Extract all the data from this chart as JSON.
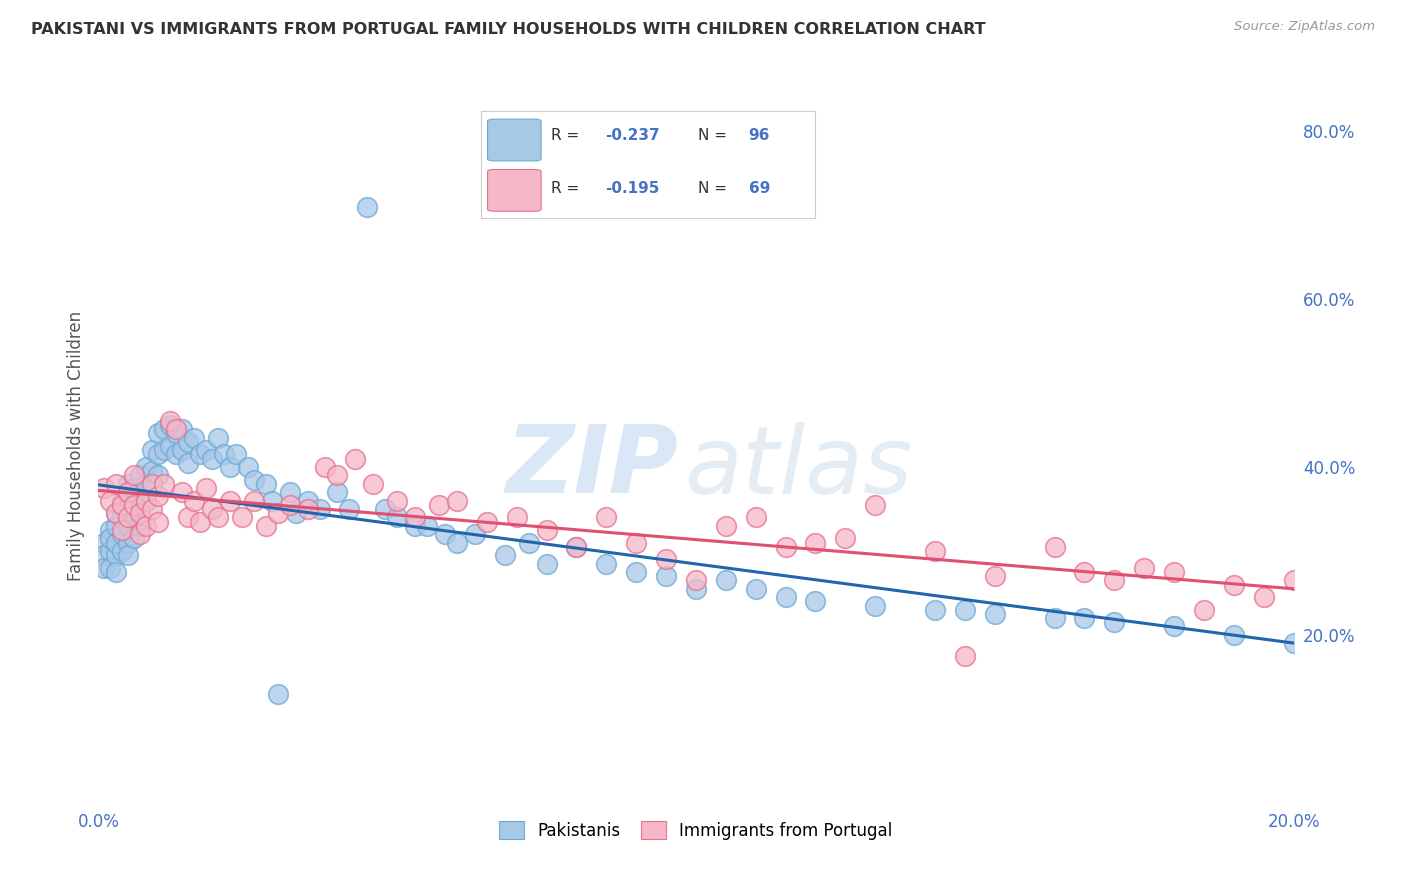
{
  "title": "PAKISTANI VS IMMIGRANTS FROM PORTUGAL FAMILY HOUSEHOLDS WITH CHILDREN CORRELATION CHART",
  "source": "Source: ZipAtlas.com",
  "ylabel": "Family Households with Children",
  "xlim": [
    0.0,
    0.2
  ],
  "ylim": [
    0.0,
    0.85
  ],
  "xticks": [
    0.0,
    0.05,
    0.1,
    0.15,
    0.2
  ],
  "xtick_labels": [
    "0.0%",
    "",
    "",
    "",
    "20.0%"
  ],
  "ytick_labels_right": [
    "20.0%",
    "40.0%",
    "60.0%",
    "80.0%"
  ],
  "yticks_right": [
    0.2,
    0.4,
    0.6,
    0.8
  ],
  "blue_color": "#a8c8e8",
  "blue_edge_color": "#6aaad4",
  "pink_color": "#f4b8c8",
  "pink_edge_color": "#e87090",
  "blue_line_color": "#2166ac",
  "pink_line_color": "#e05070",
  "tick_label_color": "#4472c4",
  "background_color": "#ffffff",
  "grid_color": "#cccccc",
  "blue_scatter_x": [
    0.001,
    0.001,
    0.001,
    0.002,
    0.002,
    0.002,
    0.002,
    0.003,
    0.003,
    0.003,
    0.003,
    0.003,
    0.004,
    0.004,
    0.004,
    0.004,
    0.005,
    0.005,
    0.005,
    0.005,
    0.005,
    0.006,
    0.006,
    0.006,
    0.006,
    0.007,
    0.007,
    0.007,
    0.007,
    0.008,
    0.008,
    0.008,
    0.009,
    0.009,
    0.01,
    0.01,
    0.01,
    0.011,
    0.011,
    0.012,
    0.012,
    0.013,
    0.013,
    0.014,
    0.014,
    0.015,
    0.015,
    0.016,
    0.017,
    0.018,
    0.019,
    0.02,
    0.021,
    0.022,
    0.023,
    0.025,
    0.026,
    0.028,
    0.029,
    0.03,
    0.032,
    0.033,
    0.035,
    0.037,
    0.04,
    0.042,
    0.045,
    0.048,
    0.05,
    0.053,
    0.055,
    0.058,
    0.06,
    0.063,
    0.068,
    0.072,
    0.075,
    0.08,
    0.085,
    0.09,
    0.095,
    0.1,
    0.105,
    0.11,
    0.115,
    0.12,
    0.13,
    0.14,
    0.15,
    0.16,
    0.17,
    0.18,
    0.19,
    0.2,
    0.165,
    0.145
  ],
  "blue_scatter_y": [
    0.31,
    0.295,
    0.28,
    0.325,
    0.3,
    0.315,
    0.28,
    0.33,
    0.295,
    0.31,
    0.345,
    0.275,
    0.34,
    0.32,
    0.3,
    0.36,
    0.35,
    0.38,
    0.33,
    0.31,
    0.295,
    0.375,
    0.355,
    0.34,
    0.315,
    0.39,
    0.37,
    0.35,
    0.33,
    0.4,
    0.38,
    0.36,
    0.42,
    0.395,
    0.44,
    0.415,
    0.39,
    0.445,
    0.42,
    0.45,
    0.425,
    0.44,
    0.415,
    0.445,
    0.42,
    0.43,
    0.405,
    0.435,
    0.415,
    0.42,
    0.41,
    0.435,
    0.415,
    0.4,
    0.415,
    0.4,
    0.385,
    0.38,
    0.36,
    0.13,
    0.37,
    0.345,
    0.36,
    0.35,
    0.37,
    0.35,
    0.71,
    0.35,
    0.34,
    0.33,
    0.33,
    0.32,
    0.31,
    0.32,
    0.295,
    0.31,
    0.285,
    0.305,
    0.285,
    0.275,
    0.27,
    0.255,
    0.265,
    0.255,
    0.245,
    0.24,
    0.235,
    0.23,
    0.225,
    0.22,
    0.215,
    0.21,
    0.2,
    0.19,
    0.22,
    0.23
  ],
  "pink_scatter_x": [
    0.001,
    0.002,
    0.003,
    0.003,
    0.004,
    0.004,
    0.005,
    0.005,
    0.006,
    0.006,
    0.007,
    0.007,
    0.008,
    0.008,
    0.009,
    0.009,
    0.01,
    0.01,
    0.011,
    0.012,
    0.013,
    0.014,
    0.015,
    0.016,
    0.017,
    0.018,
    0.019,
    0.02,
    0.022,
    0.024,
    0.026,
    0.028,
    0.03,
    0.032,
    0.035,
    0.038,
    0.04,
    0.043,
    0.046,
    0.05,
    0.053,
    0.057,
    0.06,
    0.065,
    0.07,
    0.075,
    0.08,
    0.085,
    0.09,
    0.095,
    0.1,
    0.105,
    0.11,
    0.115,
    0.12,
    0.13,
    0.14,
    0.15,
    0.16,
    0.17,
    0.175,
    0.18,
    0.185,
    0.19,
    0.195,
    0.2,
    0.165,
    0.125,
    0.145
  ],
  "pink_scatter_y": [
    0.375,
    0.36,
    0.345,
    0.38,
    0.355,
    0.325,
    0.37,
    0.34,
    0.355,
    0.39,
    0.345,
    0.32,
    0.36,
    0.33,
    0.38,
    0.35,
    0.365,
    0.335,
    0.38,
    0.455,
    0.445,
    0.37,
    0.34,
    0.36,
    0.335,
    0.375,
    0.35,
    0.34,
    0.36,
    0.34,
    0.36,
    0.33,
    0.345,
    0.355,
    0.35,
    0.4,
    0.39,
    0.41,
    0.38,
    0.36,
    0.34,
    0.355,
    0.36,
    0.335,
    0.34,
    0.325,
    0.305,
    0.34,
    0.31,
    0.29,
    0.265,
    0.33,
    0.34,
    0.305,
    0.31,
    0.355,
    0.3,
    0.27,
    0.305,
    0.265,
    0.28,
    0.275,
    0.23,
    0.26,
    0.245,
    0.265,
    0.275,
    0.315,
    0.175
  ],
  "watermark_zip_color": "#c0d8f0",
  "watermark_atlas_color": "#c8dce8"
}
